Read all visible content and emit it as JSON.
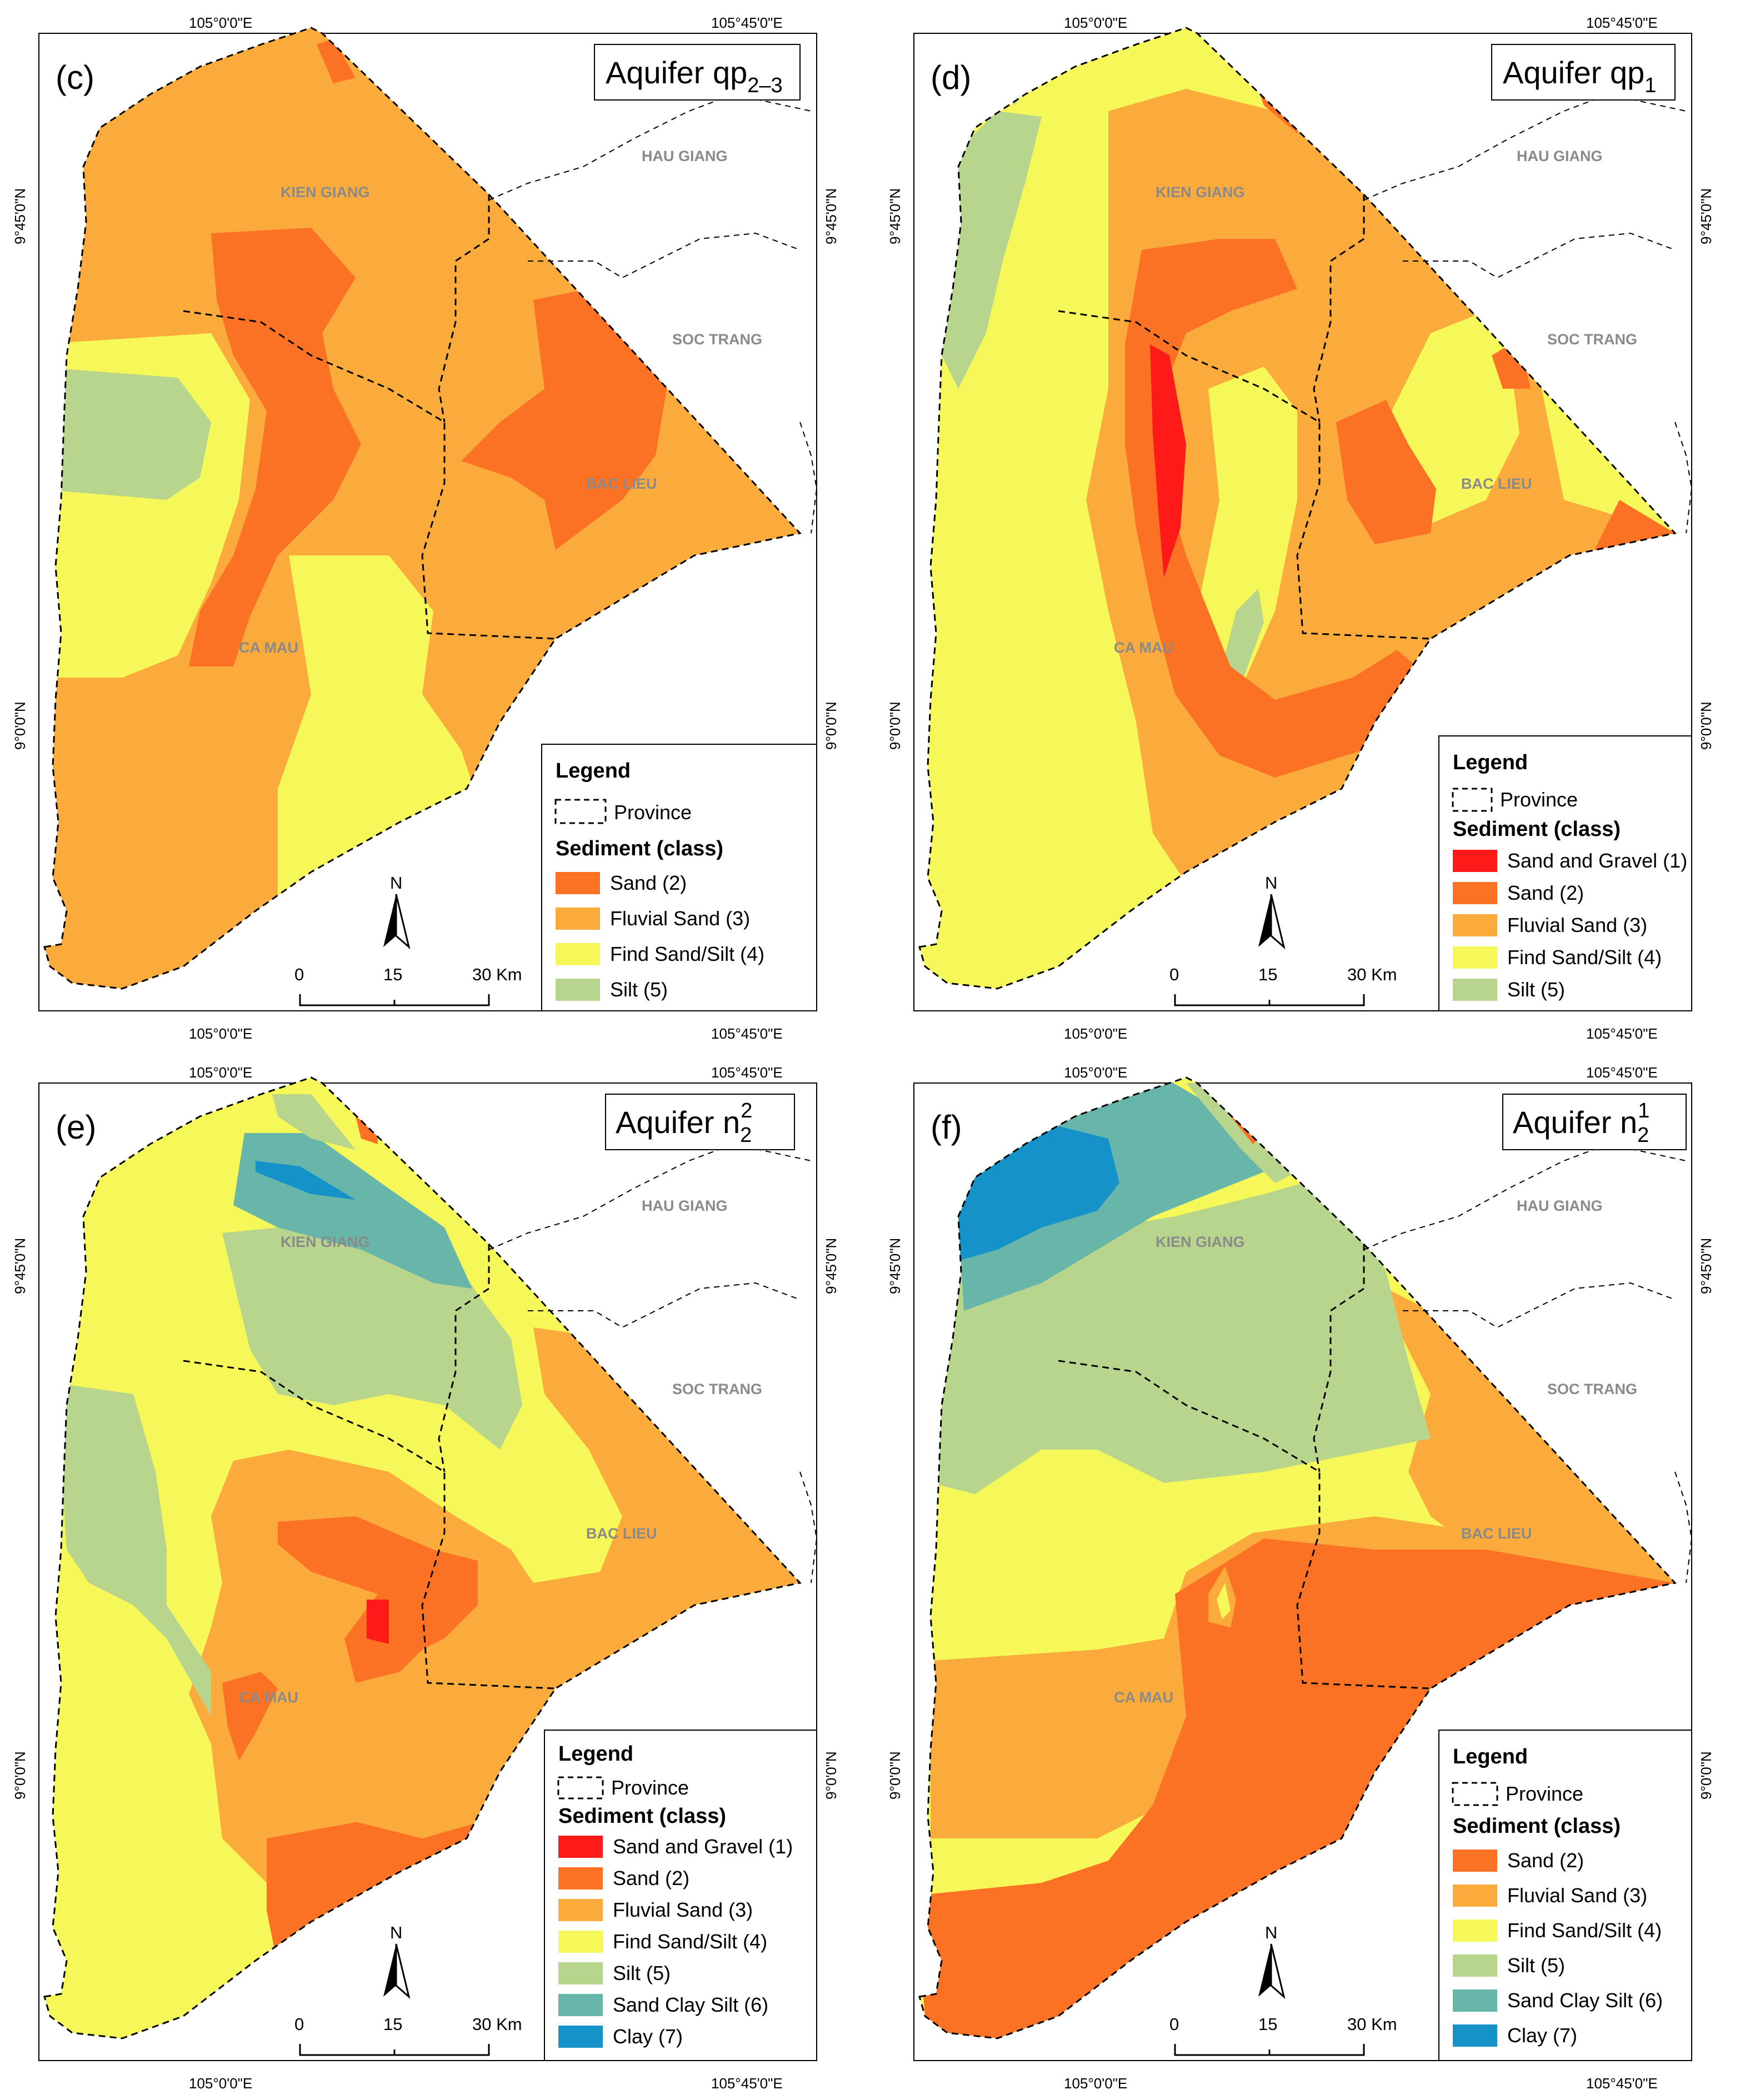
{
  "coords": {
    "top_left": "105°0'0\"E",
    "top_right": "105°45'0\"E",
    "bottom_left": "105°0'0\"E",
    "bottom_right": "105°45'0\"E",
    "lat_upper": "9°45'0\"N",
    "lat_lower": "9°0'0\"N"
  },
  "provinces": {
    "kien_giang": "KIEN GIANG",
    "hau_giang": "HAU GIANG",
    "soc_trang": "SOC TRANG",
    "bac_lieu": "BAC LIEU",
    "ca_mau": "CA MAU"
  },
  "scalebar": {
    "zero": "0",
    "mid": "15",
    "end": "30 Km",
    "north": "N"
  },
  "legend": {
    "title": "Legend",
    "province": "Province",
    "sediment": "Sediment (class)"
  },
  "colors": {
    "sand_gravel": "#ff1a1a",
    "sand": "#fb7224",
    "fluvial_sand": "#fbab3b",
    "fine_sand_silt": "#f6f758",
    "silt": "#b7d58c",
    "sand_clay_silt": "#68b5a9",
    "clay": "#1592c8"
  },
  "panels": {
    "c": {
      "label": "(c)",
      "title_main": "Aquifer qp",
      "title_sub": "2–3",
      "legend_items": [
        "Sand (2)",
        "Fluvial Sand (3)",
        "Find Sand/Silt (4)",
        "Silt (5)"
      ],
      "legend_colors": [
        "sand",
        "fluvial_sand",
        "fine_sand_silt",
        "silt"
      ]
    },
    "d": {
      "label": "(d)",
      "title_main": "Aquifer qp",
      "title_sub": "1",
      "legend_items": [
        "Sand and Gravel (1)",
        "Sand (2)",
        "Fluvial Sand (3)",
        "Find Sand/Silt (4)",
        "Silt (5)"
      ],
      "legend_colors": [
        "sand_gravel",
        "sand",
        "fluvial_sand",
        "fine_sand_silt",
        "silt"
      ]
    },
    "e": {
      "label": "(e)",
      "title_main": "Aquifer n",
      "title_sub": "2",
      "title_sup": "2",
      "legend_items": [
        "Sand and Gravel (1)",
        "Sand (2)",
        "Fluvial Sand (3)",
        "Find Sand/Silt (4)",
        "Silt (5)",
        "Sand Clay Silt (6)",
        "Clay (7)"
      ],
      "legend_colors": [
        "sand_gravel",
        "sand",
        "fluvial_sand",
        "fine_sand_silt",
        "silt",
        "sand_clay_silt",
        "clay"
      ]
    },
    "f": {
      "label": "(f)",
      "title_main": "Aquifer n",
      "title_sub": "2",
      "title_sup": "1",
      "legend_items": [
        "Sand (2)",
        "Fluvial Sand (3)",
        "Find Sand/Silt (4)",
        "Silt (5)",
        "Sand Clay Silt (6)",
        "Clay (7)"
      ],
      "legend_colors": [
        "sand",
        "fluvial_sand",
        "fine_sand_silt",
        "silt",
        "sand_clay_silt",
        "clay"
      ]
    }
  }
}
